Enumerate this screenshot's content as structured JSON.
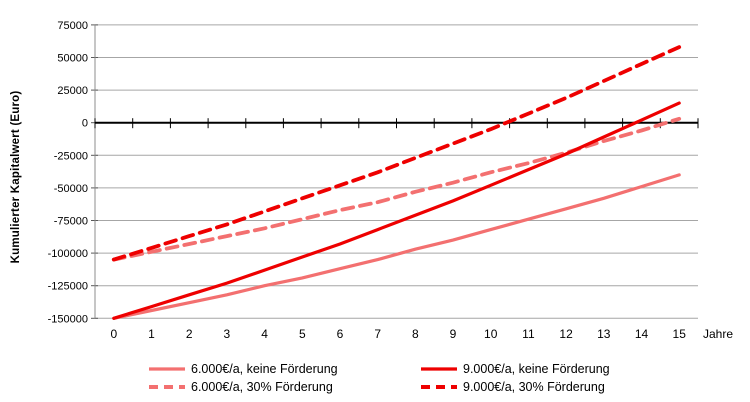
{
  "chart_data": {
    "type": "line",
    "title": "",
    "ylabel": "Kumulierter Kapitalwert (Euro)",
    "xlabel": "Jahre",
    "x": [
      0,
      1,
      2,
      3,
      4,
      5,
      6,
      7,
      8,
      9,
      10,
      11,
      12,
      13,
      14,
      15
    ],
    "x_tick_labels": [
      "0",
      "1",
      "2",
      "3",
      "4",
      "5",
      "6",
      "7",
      "8",
      "9",
      "10",
      "11",
      "12",
      "13",
      "14",
      "15"
    ],
    "y_ticks": [
      75000,
      50000,
      25000,
      0,
      -25000,
      -50000,
      -75000,
      -100000,
      -125000,
      -150000
    ],
    "y_tick_labels": [
      "75000",
      "50000",
      "25000",
      "0",
      "-25000",
      "-50000",
      "-75000",
      "-100000",
      "-125000",
      "-150000"
    ],
    "ylim": [
      -150000,
      75000
    ],
    "grid": true,
    "legend_position": "bottom",
    "series": [
      {
        "name": "6.000€/a, keine Förderung",
        "style": "solid",
        "color": "#f37070",
        "values": [
          -150000,
          -144000,
          -138000,
          -132000,
          -125000,
          -119000,
          -112000,
          -105000,
          -97000,
          -90000,
          -82000,
          -74000,
          -66000,
          -58000,
          -49000,
          -40000
        ]
      },
      {
        "name": "6.000€/a, 30% Förderung",
        "style": "dashed",
        "color": "#f37070",
        "values": [
          -105000,
          -99000,
          -93000,
          -87000,
          -81000,
          -74000,
          -67000,
          -61000,
          -53000,
          -46000,
          -38000,
          -31000,
          -23000,
          -14000,
          -6000,
          3000
        ]
      },
      {
        "name": "9.000€/a, keine Förderung",
        "style": "solid",
        "color": "#ee0000",
        "values": [
          -150000,
          -141000,
          -132000,
          -123000,
          -113000,
          -103000,
          -93000,
          -82000,
          -71000,
          -60000,
          -48000,
          -36000,
          -24000,
          -11000,
          2000,
          15000
        ]
      },
      {
        "name": "9.000€/a, 30% Förderung",
        "style": "dashed",
        "color": "#ee0000",
        "values": [
          -105000,
          -96000,
          -87000,
          -78000,
          -68000,
          -58000,
          -48000,
          -38000,
          -27000,
          -16000,
          -5000,
          7000,
          19000,
          32000,
          45000,
          58000
        ]
      }
    ],
    "colors": {
      "gridline": "#a6a6a6",
      "zero_axis": "#000000",
      "axis_line": "#8c8c8c",
      "tick": "#595959",
      "text": "#000000"
    }
  }
}
